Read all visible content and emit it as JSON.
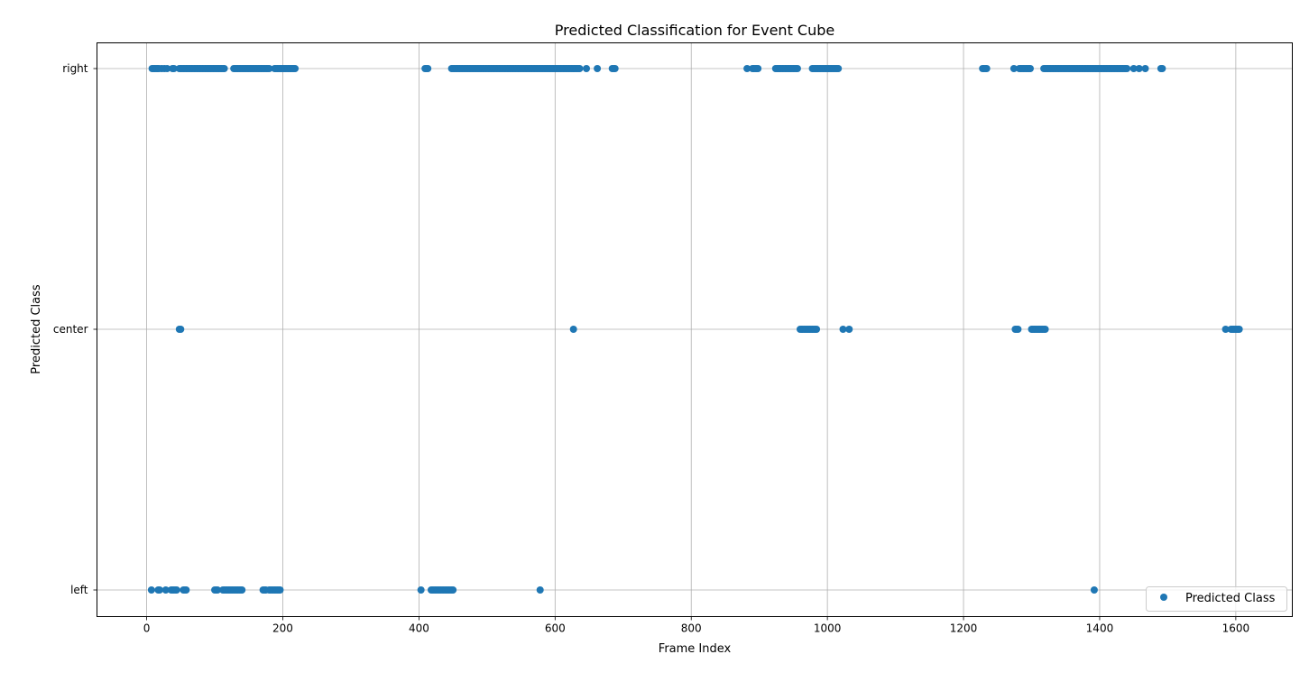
{
  "chart_data": {
    "type": "scatter",
    "title": "Predicted Classification for Event Cube",
    "xlabel": "Frame Index",
    "ylabel": "Predicted Class",
    "xlim": [
      -73,
      1683
    ],
    "x_ticks": [
      0,
      200,
      400,
      600,
      800,
      1000,
      1200,
      1400,
      1600
    ],
    "x_tick_labels": [
      "0",
      "200",
      "400",
      "600",
      "800",
      "1000",
      "1200",
      "1400",
      "1600"
    ],
    "categories": [
      "left",
      "center",
      "right"
    ],
    "grid": true,
    "legend": {
      "position": "lower-right",
      "entries": [
        "Predicted Class"
      ]
    },
    "colors": {
      "series": "#1f77b4",
      "grid": "#b0b0b0"
    },
    "series": [
      {
        "name": "Predicted Class",
        "points": {
          "right": [
            {
              "from": 8,
              "to": 18,
              "step": 2
            },
            {
              "from": 22,
              "to": 30,
              "step": 4
            },
            {
              "from": 38,
              "to": 40,
              "step": 2
            },
            {
              "from": 48,
              "to": 114,
              "step": 2
            },
            {
              "from": 128,
              "to": 180,
              "step": 2
            },
            {
              "from": 188,
              "to": 218,
              "step": 2
            },
            {
              "from": 409,
              "to": 413,
              "step": 2
            },
            {
              "from": 448,
              "to": 636,
              "step": 2
            },
            {
              "from": 646,
              "to": 646,
              "step": 1
            },
            {
              "from": 662,
              "to": 662,
              "step": 1
            },
            {
              "from": 684,
              "to": 688,
              "step": 2
            },
            {
              "from": 882,
              "to": 882,
              "step": 1
            },
            {
              "from": 890,
              "to": 898,
              "step": 2
            },
            {
              "from": 924,
              "to": 956,
              "step": 2
            },
            {
              "from": 978,
              "to": 1016,
              "step": 2
            },
            {
              "from": 1228,
              "to": 1234,
              "step": 2
            },
            {
              "from": 1274,
              "to": 1274,
              "step": 1
            },
            {
              "from": 1282,
              "to": 1298,
              "step": 2
            },
            {
              "from": 1318,
              "to": 1440,
              "step": 2
            },
            {
              "from": 1450,
              "to": 1450,
              "step": 1
            },
            {
              "from": 1458,
              "to": 1458,
              "step": 1
            },
            {
              "from": 1467,
              "to": 1467,
              "step": 1
            },
            {
              "from": 1490,
              "to": 1492,
              "step": 2
            }
          ],
          "center": [
            {
              "from": 48,
              "to": 50,
              "step": 2
            },
            {
              "from": 627,
              "to": 627,
              "step": 1
            },
            {
              "from": 960,
              "to": 984,
              "step": 2
            },
            {
              "from": 1023,
              "to": 1023,
              "step": 1
            },
            {
              "from": 1032,
              "to": 1032,
              "step": 1
            },
            {
              "from": 1276,
              "to": 1280,
              "step": 2
            },
            {
              "from": 1300,
              "to": 1320,
              "step": 2
            },
            {
              "from": 1585,
              "to": 1585,
              "step": 1
            },
            {
              "from": 1593,
              "to": 1606,
              "step": 2
            }
          ],
          "left": [
            {
              "from": 7,
              "to": 7,
              "step": 1
            },
            {
              "from": 17,
              "to": 19,
              "step": 2
            },
            {
              "from": 28,
              "to": 28,
              "step": 1
            },
            {
              "from": 36,
              "to": 44,
              "step": 2
            },
            {
              "from": 54,
              "to": 58,
              "step": 2
            },
            {
              "from": 100,
              "to": 104,
              "step": 2
            },
            {
              "from": 112,
              "to": 140,
              "step": 2
            },
            {
              "from": 171,
              "to": 175,
              "step": 2
            },
            {
              "from": 180,
              "to": 196,
              "step": 2
            },
            {
              "from": 403,
              "to": 403,
              "step": 1
            },
            {
              "from": 418,
              "to": 450,
              "step": 2
            },
            {
              "from": 578,
              "to": 578,
              "step": 1
            },
            {
              "from": 1392,
              "to": 1392,
              "step": 1
            }
          ]
        }
      }
    ]
  }
}
